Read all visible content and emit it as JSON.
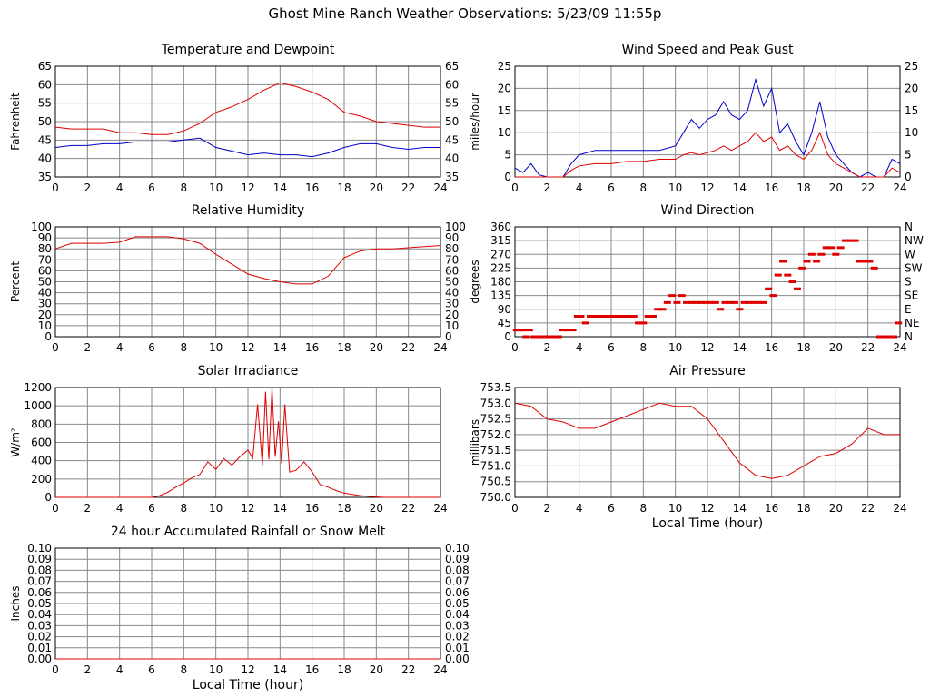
{
  "page": {
    "title": "Ghost Mine Ranch Weather Observations: 5/23/09 11:55p"
  },
  "colors": {
    "red": "#e00000",
    "blue": "#0000c8",
    "grid": "#888888",
    "frame": "#000000"
  },
  "chart_data": [
    {
      "id": "temp",
      "type": "line",
      "title": "Temperature and Dewpoint",
      "xlabel": "",
      "ylabel": "Fahrenheit",
      "xlim": [
        0,
        24
      ],
      "ylim": [
        35,
        65
      ],
      "xticks": [
        "0",
        "2",
        "4",
        "6",
        "8",
        "10",
        "12",
        "14",
        "16",
        "18",
        "20",
        "22",
        "24"
      ],
      "yticks_left": [
        "35",
        "40",
        "45",
        "50",
        "55",
        "60",
        "65"
      ],
      "yticks_right": [
        "35",
        "40",
        "45",
        "50",
        "55",
        "60",
        "65"
      ],
      "grid": true,
      "series": [
        {
          "color": "#e00000",
          "x": [
            0,
            1,
            2,
            3,
            4,
            5,
            6,
            7,
            8,
            9,
            10,
            11,
            12,
            13,
            14,
            15,
            16,
            17,
            18,
            19,
            20,
            21,
            22,
            23,
            24
          ],
          "y": [
            48.5,
            48,
            48,
            48,
            47,
            47,
            46.5,
            46.5,
            47.5,
            49.5,
            52.5,
            54,
            56,
            58.5,
            60.5,
            59.5,
            58,
            56,
            52.5,
            51.5,
            50,
            49.5,
            49,
            48.5,
            48.5
          ]
        },
        {
          "color": "#0000c8",
          "x": [
            0,
            1,
            2,
            3,
            4,
            5,
            6,
            7,
            8,
            9,
            10,
            11,
            12,
            13,
            14,
            15,
            16,
            17,
            18,
            19,
            20,
            21,
            22,
            23,
            24
          ],
          "y": [
            43,
            43.5,
            43.5,
            44,
            44,
            44.5,
            44.5,
            44.5,
            45,
            45.5,
            43,
            42,
            41,
            41.5,
            41,
            41,
            40.5,
            41.5,
            43,
            44,
            44,
            43,
            42.5,
            43,
            43
          ]
        }
      ]
    },
    {
      "id": "wind",
      "type": "line",
      "title": "Wind Speed and Peak Gust",
      "xlabel": "",
      "ylabel": "miles/hour",
      "xlim": [
        0,
        24
      ],
      "ylim": [
        0,
        25
      ],
      "xticks": [
        "0",
        "2",
        "4",
        "6",
        "8",
        "10",
        "12",
        "14",
        "16",
        "18",
        "20",
        "22",
        "24"
      ],
      "yticks_left": [
        "0",
        "5",
        "10",
        "15",
        "20",
        "25"
      ],
      "yticks_right": [
        "0",
        "5",
        "10",
        "15",
        "20",
        "25"
      ],
      "grid": true,
      "series": [
        {
          "color": "#0000c8",
          "x": [
            0,
            0.5,
            1,
            1.5,
            2,
            2.5,
            3,
            3.5,
            4,
            5,
            6,
            7,
            8,
            9,
            10,
            10.5,
            11,
            11.5,
            12,
            12.5,
            13,
            13.5,
            14,
            14.5,
            15,
            15.5,
            16,
            16.5,
            17,
            17.5,
            18,
            18.5,
            19,
            19.5,
            20,
            20.5,
            21,
            21.5,
            22,
            22.5,
            23,
            23.5,
            24
          ],
          "y": [
            2,
            1,
            3,
            0.5,
            0,
            0,
            0,
            3,
            5,
            6,
            6,
            6,
            6,
            6,
            7,
            10,
            13,
            11,
            13,
            14,
            17,
            14,
            13,
            15,
            22,
            16,
            20,
            10,
            12,
            8,
            5,
            10,
            17,
            9,
            5,
            3,
            1,
            0,
            1,
            0,
            0,
            4,
            3
          ]
        },
        {
          "color": "#e00000",
          "x": [
            0,
            0.5,
            1,
            1.5,
            2,
            2.5,
            3,
            3.5,
            4,
            5,
            6,
            7,
            8,
            9,
            10,
            10.5,
            11,
            11.5,
            12,
            12.5,
            13,
            13.5,
            14,
            14.5,
            15,
            15.5,
            16,
            16.5,
            17,
            17.5,
            18,
            18.5,
            19,
            19.5,
            20,
            20.5,
            21,
            21.5,
            22,
            22.5,
            23,
            23.5,
            24
          ],
          "y": [
            0,
            0,
            0,
            0,
            0,
            0,
            0,
            1.5,
            2.5,
            3,
            3,
            3.5,
            3.5,
            4,
            4,
            5,
            5.5,
            5,
            5.5,
            6,
            7,
            6,
            7,
            8,
            10,
            8,
            9,
            6,
            7,
            5,
            4,
            6,
            10,
            5,
            3,
            2,
            1,
            0,
            0,
            0,
            0,
            2,
            1
          ]
        }
      ]
    },
    {
      "id": "rh",
      "type": "line",
      "title": "Relative Humidity",
      "xlabel": "",
      "ylabel": "Percent",
      "xlim": [
        0,
        24
      ],
      "ylim": [
        0,
        100
      ],
      "xticks": [
        "0",
        "2",
        "4",
        "6",
        "8",
        "10",
        "12",
        "14",
        "16",
        "18",
        "20",
        "22",
        "24"
      ],
      "yticks_left": [
        "0",
        "10",
        "20",
        "30",
        "40",
        "50",
        "60",
        "70",
        "80",
        "90",
        "100"
      ],
      "yticks_right": [
        "0",
        "10",
        "20",
        "30",
        "40",
        "50",
        "60",
        "70",
        "80",
        "90",
        "100"
      ],
      "grid": true,
      "series": [
        {
          "color": "#e00000",
          "x": [
            0,
            1,
            2,
            3,
            4,
            5,
            6,
            7,
            8,
            9,
            10,
            11,
            12,
            13,
            14,
            15,
            16,
            17,
            18,
            19,
            20,
            21,
            22,
            23,
            24
          ],
          "y": [
            80,
            85,
            85,
            85,
            86,
            91,
            91,
            91,
            89,
            85,
            75,
            66,
            57,
            53,
            50,
            48,
            48,
            55,
            72,
            78,
            80,
            80,
            81,
            82,
            83
          ]
        }
      ]
    },
    {
      "id": "wdir",
      "type": "scatter",
      "title": "Wind Direction",
      "xlabel": "",
      "ylabel": "degrees",
      "xlim": [
        0,
        24
      ],
      "ylim": [
        0,
        360
      ],
      "xticks": [
        "0",
        "2",
        "4",
        "6",
        "8",
        "10",
        "12",
        "14",
        "16",
        "18",
        "20",
        "22",
        "24"
      ],
      "yticks_left": [
        "0",
        "45",
        "90",
        "135",
        "180",
        "225",
        "270",
        "315",
        "360"
      ],
      "yticks_right": [
        "N",
        "NE",
        "E",
        "SE",
        "S",
        "SW",
        "W",
        "NW",
        "N"
      ],
      "grid": true,
      "series": [
        {
          "color": "#e00000",
          "x": [
            0.1,
            0.3,
            0.5,
            0.7,
            0.9,
            1.2,
            1.5,
            1.8,
            2.1,
            2.4,
            2.7,
            3.0,
            3.3,
            3.6,
            3.9,
            4.1,
            4.4,
            4.7,
            5.0,
            5.3,
            5.6,
            5.9,
            6.2,
            6.5,
            6.8,
            7.1,
            7.4,
            7.7,
            8.0,
            8.3,
            8.6,
            8.9,
            9.2,
            9.5,
            9.8,
            10.1,
            10.4,
            10.7,
            11.0,
            11.3,
            11.6,
            11.9,
            12.2,
            12.5,
            12.8,
            13.1,
            13.4,
            13.7,
            14.0,
            14.3,
            14.6,
            14.9,
            15.2,
            15.5,
            15.8,
            16.1,
            16.4,
            16.7,
            17.0,
            17.3,
            17.6,
            17.9,
            18.2,
            18.5,
            18.8,
            19.1,
            19.4,
            19.7,
            20.0,
            20.3,
            20.6,
            20.9,
            21.2,
            21.5,
            21.8,
            22.1,
            22.4,
            22.7,
            23.0,
            23.3,
            23.6,
            23.9
          ],
          "y": [
            22,
            22,
            22,
            0,
            22,
            0,
            0,
            0,
            0,
            0,
            0,
            22,
            22,
            22,
            67,
            67,
            45,
            67,
            67,
            67,
            67,
            67,
            67,
            67,
            67,
            67,
            67,
            45,
            45,
            67,
            67,
            90,
            90,
            112,
            135,
            112,
            135,
            112,
            112,
            112,
            112,
            112,
            112,
            112,
            90,
            112,
            112,
            112,
            90,
            112,
            112,
            112,
            112,
            112,
            157,
            135,
            202,
            247,
            202,
            180,
            157,
            225,
            247,
            270,
            247,
            270,
            292,
            292,
            270,
            292,
            315,
            315,
            315,
            247,
            247,
            247,
            225,
            0,
            0,
            0,
            0,
            45
          ]
        }
      ]
    },
    {
      "id": "solar",
      "type": "line",
      "title": "Solar Irradiance",
      "xlabel": "",
      "ylabel": "W/m²",
      "xlim": [
        0,
        24
      ],
      "ylim": [
        0,
        1300
      ],
      "xticks": [
        "0",
        "2",
        "4",
        "6",
        "8",
        "10",
        "12",
        "14",
        "16",
        "18",
        "20",
        "22",
        "24"
      ],
      "yticks_left": [
        "0",
        "200",
        "400",
        "600",
        "800",
        "1000",
        "1200"
      ],
      "yticks_right": [],
      "grid": true,
      "series": [
        {
          "color": "#e00000",
          "x": [
            0,
            6,
            6.5,
            7,
            7.5,
            8,
            8.5,
            9,
            9.5,
            10,
            10.5,
            11,
            11.5,
            12,
            12.3,
            12.6,
            12.9,
            13.1,
            13.3,
            13.5,
            13.7,
            13.9,
            14.1,
            14.3,
            14.6,
            15,
            15.5,
            16,
            16.5,
            17,
            17.5,
            18,
            19,
            20,
            20.5,
            24
          ],
          "y": [
            0,
            0,
            20,
            60,
            120,
            170,
            230,
            270,
            420,
            330,
            460,
            380,
            480,
            560,
            460,
            1100,
            380,
            1250,
            450,
            1300,
            480,
            900,
            400,
            1100,
            300,
            320,
            420,
            300,
            150,
            120,
            80,
            50,
            20,
            5,
            0,
            0
          ]
        }
      ]
    },
    {
      "id": "pressure",
      "type": "line",
      "title": "Air Pressure",
      "xlabel": "Local Time (hour)",
      "ylabel": "millibars",
      "xlim": [
        0,
        24
      ],
      "ylim": [
        750.0,
        753.5
      ],
      "xticks": [
        "0",
        "2",
        "4",
        "6",
        "8",
        "10",
        "12",
        "14",
        "16",
        "18",
        "20",
        "22",
        "24"
      ],
      "yticks_left": [
        "750.0",
        "750.5",
        "751.0",
        "751.5",
        "752.0",
        "752.5",
        "753.0",
        "753.5"
      ],
      "yticks_right": [],
      "grid": true,
      "series": [
        {
          "color": "#e00000",
          "x": [
            0,
            1,
            2,
            3,
            4,
            5,
            6,
            7,
            8,
            9,
            10,
            11,
            12,
            13,
            14,
            15,
            16,
            17,
            18,
            19,
            20,
            21,
            22,
            23,
            24
          ],
          "y": [
            753.0,
            752.9,
            752.5,
            752.4,
            752.2,
            752.2,
            752.4,
            752.6,
            752.8,
            753.0,
            752.9,
            752.9,
            752.5,
            751.8,
            751.1,
            750.7,
            750.6,
            750.7,
            751.0,
            751.3,
            751.4,
            751.7,
            752.2,
            752.0,
            752.0
          ]
        }
      ]
    },
    {
      "id": "rain",
      "type": "line",
      "title": "24 hour Accumulated Rainfall or Snow Melt",
      "xlabel": "Local Time (hour)",
      "ylabel": "Inches",
      "xlim": [
        0,
        24
      ],
      "ylim": [
        0,
        0.1
      ],
      "xticks": [
        "0",
        "2",
        "4",
        "6",
        "8",
        "10",
        "12",
        "14",
        "16",
        "18",
        "20",
        "22",
        "24"
      ],
      "yticks_left": [
        "0.00",
        "0.01",
        "0.02",
        "0.03",
        "0.04",
        "0.05",
        "0.06",
        "0.07",
        "0.08",
        "0.09",
        "0.10"
      ],
      "yticks_right": [
        "0.00",
        "0.01",
        "0.02",
        "0.03",
        "0.04",
        "0.05",
        "0.06",
        "0.07",
        "0.08",
        "0.09",
        "0.10"
      ],
      "grid": true,
      "series": [
        {
          "color": "#e00000",
          "x": [
            0,
            24
          ],
          "y": [
            0,
            0
          ]
        }
      ]
    }
  ]
}
